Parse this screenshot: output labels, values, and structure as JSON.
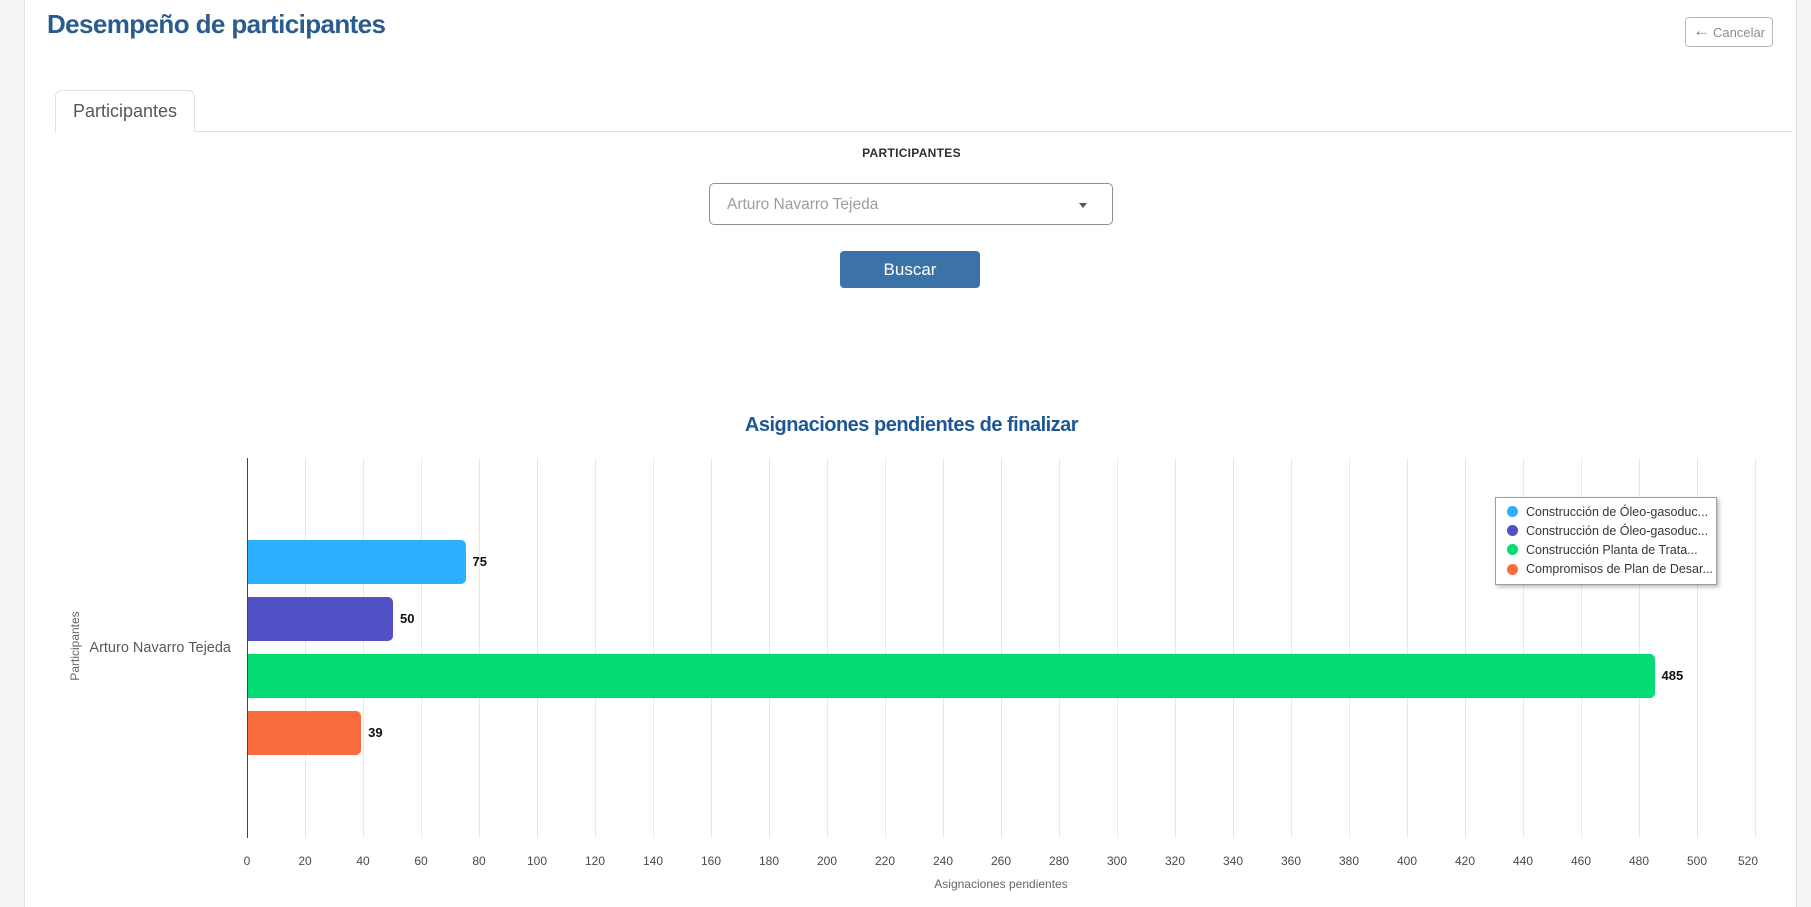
{
  "header": {
    "title": "Desempeño de participantes",
    "cancel_label": "Cancelar",
    "cancel_arrow": "←"
  },
  "tabs": [
    {
      "label": "Participantes",
      "active": true
    }
  ],
  "form": {
    "label": "PARTICIPANTES",
    "select_value": "Arturo Navarro Tejeda",
    "search_label": "Buscar"
  },
  "chart_data": {
    "type": "bar",
    "orientation": "horizontal",
    "title": "Asignaciones pendientes de finalizar",
    "xlabel": "Asignaciones pendientes",
    "ylabel": "Participantes",
    "categories": [
      "Arturo Navarro Tejeda"
    ],
    "series": [
      {
        "name": "Construcción de Óleo-gasoduc...",
        "color": "#2eaeff",
        "values": [
          75
        ]
      },
      {
        "name": "Construcción de Óleo-gasoduc...",
        "color": "#5150c4",
        "values": [
          50
        ]
      },
      {
        "name": "Construcción Planta de Trata...",
        "color": "#04dc73",
        "values": [
          485
        ]
      },
      {
        "name": "Compromisos de Plan de Desar...",
        "color": "#fb6c3c",
        "values": [
          39
        ]
      }
    ],
    "xlim": [
      0,
      520
    ],
    "xticks": [
      0,
      20,
      40,
      60,
      80,
      100,
      120,
      140,
      160,
      180,
      200,
      220,
      240,
      260,
      280,
      300,
      320,
      340,
      360,
      380,
      400,
      420,
      440,
      460,
      480,
      500,
      520
    ],
    "grid": true,
    "legend_position": "top-right"
  }
}
